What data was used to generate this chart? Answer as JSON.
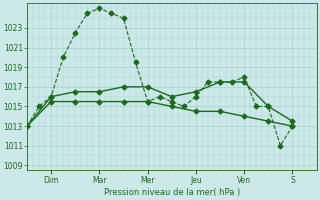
{
  "background_color": "#cce8e8",
  "grid_color": "#aad4d4",
  "line_color": "#1a6b1a",
  "ylabel": "Pression niveau de la mer( hPa )",
  "ylim": [
    1008.5,
    1025.5
  ],
  "yticks": [
    1009,
    1011,
    1013,
    1015,
    1017,
    1019,
    1021,
    1023
  ],
  "day_labels": [
    "Dim",
    "Mar",
    "Mer",
    "Jeu",
    "Ven",
    "S"
  ],
  "day_positions": [
    24,
    72,
    120,
    168,
    216,
    264
  ],
  "xlim": [
    0,
    288
  ],
  "line1_x": [
    0,
    12,
    24,
    36,
    48,
    60,
    72,
    84,
    96,
    108,
    120,
    132,
    144,
    156,
    168,
    180,
    192,
    204,
    216,
    228,
    240,
    252,
    264
  ],
  "line1_y": [
    1013,
    1015,
    1016,
    1020,
    1022.5,
    1024.5,
    1025,
    1024.5,
    1024,
    1019.5,
    1015.5,
    1016,
    1015.5,
    1015,
    1016,
    1017.5,
    1017.5,
    1017.5,
    1018,
    1015,
    1015,
    1011,
    1013
  ],
  "line2_x": [
    0,
    24,
    48,
    72,
    96,
    120,
    144,
    168,
    192,
    216,
    240,
    264
  ],
  "line2_y": [
    1013,
    1016,
    1016.5,
    1016.5,
    1017,
    1017,
    1016,
    1016.5,
    1017.5,
    1017.5,
    1015,
    1013.5
  ],
  "line3_x": [
    0,
    24,
    48,
    72,
    96,
    120,
    144,
    168,
    192,
    216,
    240,
    264
  ],
  "line3_y": [
    1013,
    1015.5,
    1015.5,
    1015.5,
    1015.5,
    1015.5,
    1015,
    1014.5,
    1014.5,
    1014,
    1013.5,
    1013
  ]
}
